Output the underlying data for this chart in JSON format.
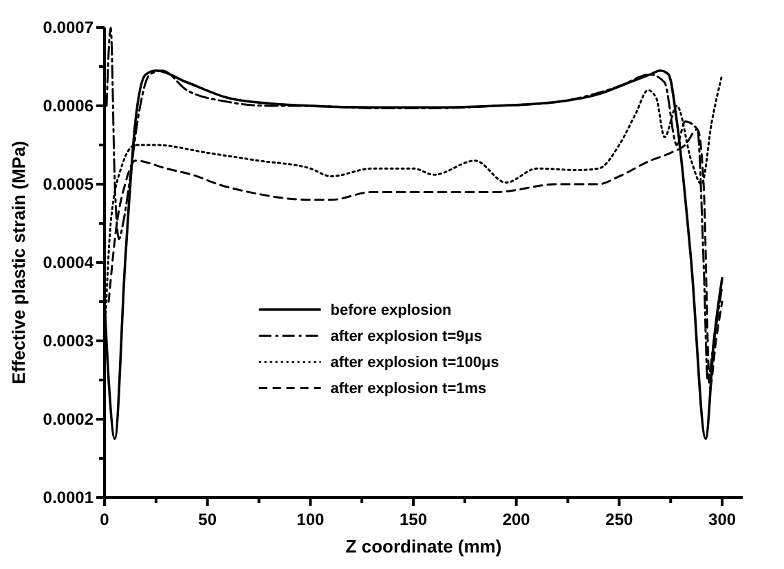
{
  "chart_data": {
    "type": "line",
    "xlabel": "Z coordinate (mm)",
    "ylabel": "Effective plastic strain (MPa)",
    "xlim": [
      0,
      310
    ],
    "ylim": [
      0.0001,
      0.0007
    ],
    "xticks": [
      0,
      {
        "value": 25,
        "label": null
      },
      50,
      {
        "value": 75,
        "label": null
      },
      100,
      {
        "value": 125,
        "label": null
      },
      150,
      {
        "value": 175,
        "label": null
      },
      200,
      {
        "value": 225,
        "label": null
      },
      250,
      {
        "value": 275,
        "label": null
      },
      300
    ],
    "yticks": [
      0.0001,
      {
        "value": 0.00015,
        "label": null
      },
      0.0002,
      {
        "value": 0.00025,
        "label": null
      },
      0.0003,
      {
        "value": 0.00035,
        "label": null
      },
      0.0004,
      {
        "value": 0.00045,
        "label": null
      },
      0.0005,
      {
        "value": 0.00055,
        "label": null
      },
      0.0006,
      {
        "value": 0.00065,
        "label": null
      },
      0.0007
    ],
    "grid": false,
    "legend": "bottom",
    "marker": "none",
    "series": [
      {
        "name": "before explosion",
        "color": "#000000",
        "line_style": "solid",
        "x": [
          0,
          2,
          5,
          10,
          15,
          20,
          25,
          40,
          60,
          80,
          100,
          130,
          160,
          190,
          220,
          240,
          255,
          265,
          270,
          274,
          278,
          285,
          292,
          296,
          300
        ],
        "values": [
          0.00035,
          0.00025,
          0.000175,
          0.0004,
          0.00058,
          0.00064,
          0.000645,
          0.00063,
          0.00061,
          0.000603,
          0.0006,
          0.000598,
          0.000598,
          0.0006,
          0.000605,
          0.000615,
          0.00063,
          0.00064,
          0.000645,
          0.00064,
          0.00058,
          0.0004,
          0.000175,
          0.0003,
          0.00038
        ]
      },
      {
        "name": "after explosion t=9μs",
        "color": "#000000",
        "line_style": "dashdot",
        "x": [
          1,
          3,
          5,
          7,
          9,
          12,
          16,
          22,
          28,
          40,
          60,
          80,
          100,
          130,
          160,
          190,
          220,
          250,
          265,
          272,
          278,
          282,
          288,
          291,
          293,
          296,
          300
        ],
        "values": [
          0.0006,
          0.0007,
          0.0005,
          0.00043,
          0.00045,
          0.0005,
          0.00058,
          0.00064,
          0.000645,
          0.00062,
          0.000605,
          0.0006,
          0.0006,
          0.000597,
          0.000597,
          0.0006,
          0.000605,
          0.000625,
          0.00064,
          0.00063,
          0.00055,
          0.00058,
          0.00057,
          0.0004,
          0.00025,
          0.0003,
          0.00037
        ]
      },
      {
        "name": "after explosion t=100μs",
        "color": "#000000",
        "line_style": "dotted",
        "x": [
          0,
          3,
          8,
          15,
          25,
          50,
          75,
          100,
          110,
          130,
          150,
          160,
          180,
          195,
          210,
          230,
          240,
          250,
          258,
          264,
          268,
          272,
          278,
          285,
          290,
          295,
          300
        ],
        "values": [
          0.0003,
          0.00045,
          0.00052,
          0.00055,
          0.00055,
          0.00054,
          0.00053,
          0.00052,
          0.00051,
          0.00052,
          0.00052,
          0.000512,
          0.00053,
          0.000502,
          0.00052,
          0.000518,
          0.00052,
          0.00055,
          0.00059,
          0.00062,
          0.00061,
          0.00056,
          0.0006,
          0.00053,
          0.0005,
          0.00058,
          0.00064
        ]
      },
      {
        "name": "after explosion t=1ms",
        "color": "#000000",
        "line_style": "dashed",
        "x": [
          2,
          6,
          10,
          15,
          30,
          45,
          55,
          70,
          100,
          110,
          130,
          150,
          170,
          190,
          220,
          240,
          250,
          265,
          275,
          282,
          288,
          291,
          294,
          297,
          300
        ],
        "values": [
          0.00035,
          0.00045,
          0.0005,
          0.00053,
          0.00052,
          0.00051,
          0.0005,
          0.00049,
          0.00048,
          0.00048,
          0.00049,
          0.00049,
          0.00049,
          0.00049,
          0.0005,
          0.0005,
          0.00051,
          0.00053,
          0.00054,
          0.00055,
          0.00057,
          0.0005,
          0.00024,
          0.0003,
          0.00035
        ]
      }
    ]
  }
}
